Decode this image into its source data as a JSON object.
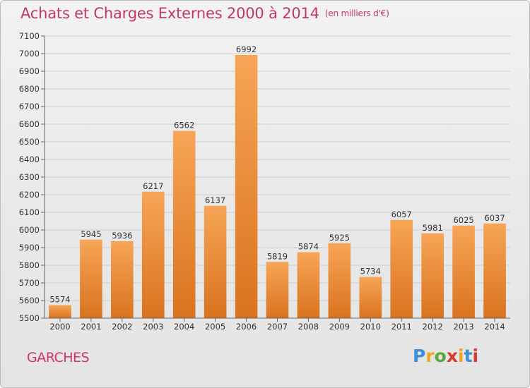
{
  "title": "Achats et Charges Externes 2000 à 2014",
  "subtitle": "(en milliers d'€)",
  "commune": "GARCHES",
  "logo": {
    "letters": [
      "P",
      "r",
      "o",
      "x",
      "i",
      "t",
      "i"
    ],
    "colors": [
      "#3a8fd8",
      "#f7a21b",
      "#5aa83b",
      "#d43a2f",
      "#f7a21b",
      "#3a8fd8",
      "#d43a2f"
    ]
  },
  "colors": {
    "title": "#c0396c",
    "bar_top": "#f7a557",
    "bar_bottom": "#d9731f",
    "grid": "#cfcfcf"
  },
  "chart_data": {
    "type": "bar",
    "categories": [
      "2000",
      "2001",
      "2002",
      "2003",
      "2004",
      "2005",
      "2006",
      "2007",
      "2008",
      "2009",
      "2010",
      "2011",
      "2012",
      "2013",
      "2014"
    ],
    "values": [
      5574,
      5945,
      5936,
      6217,
      6562,
      6137,
      6992,
      5819,
      5874,
      5925,
      5734,
      6057,
      5981,
      6025,
      6037
    ],
    "ylim": [
      5500,
      7100
    ],
    "yticks": [
      5500,
      5600,
      5700,
      5800,
      5900,
      6000,
      6100,
      6200,
      6300,
      6400,
      6500,
      6600,
      6700,
      6800,
      6900,
      7000,
      7100
    ],
    "grid": true,
    "data_labels": true
  }
}
